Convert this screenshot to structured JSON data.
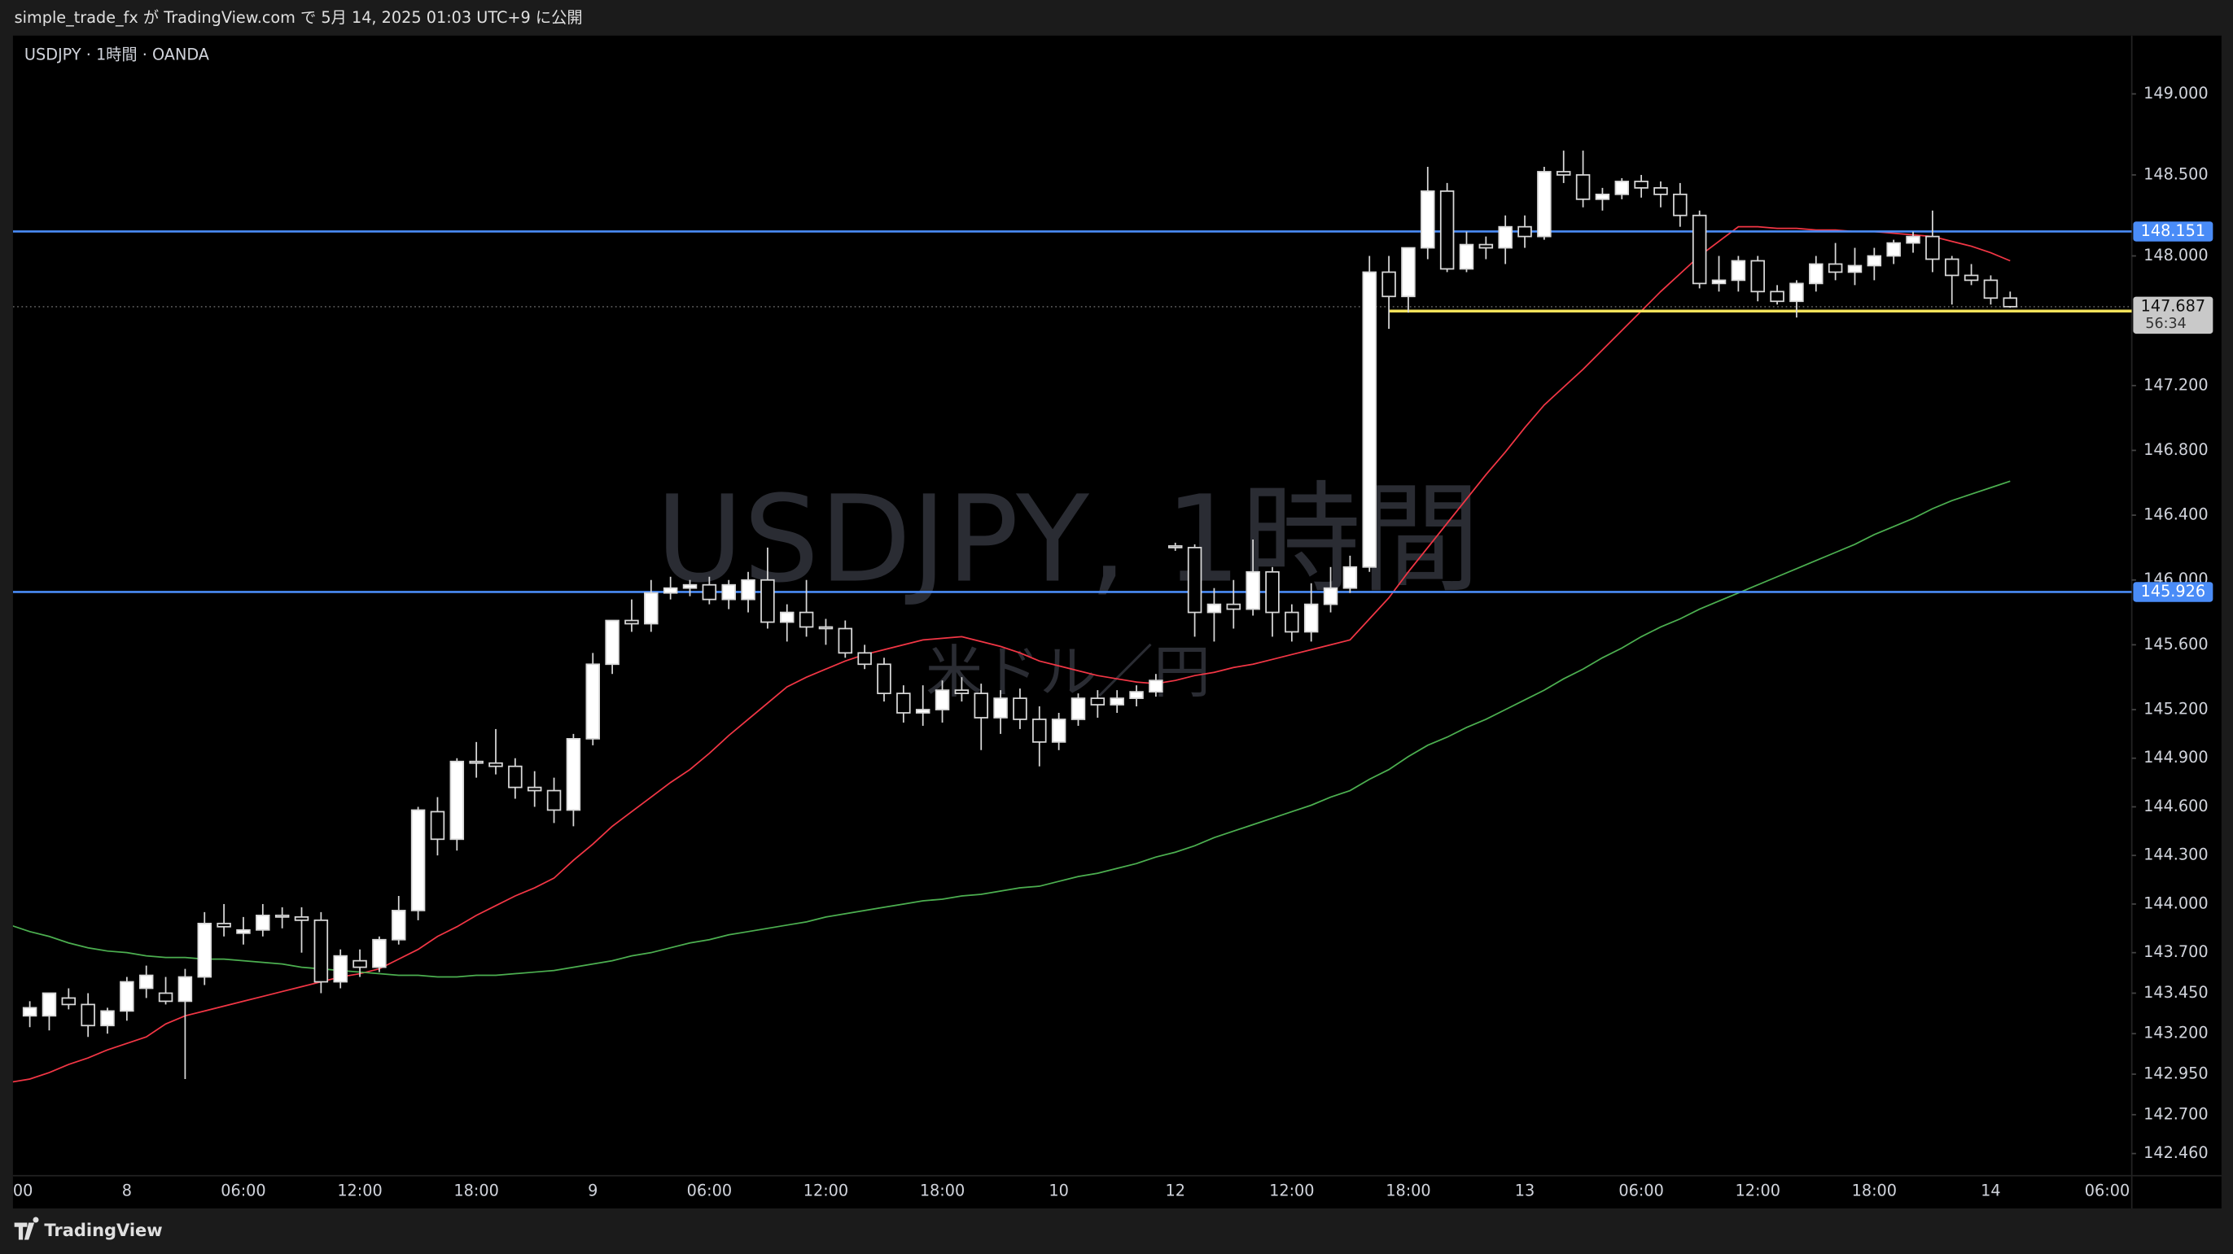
{
  "header": {
    "published": "simple_trade_fx が TradingView.com で 5月 14, 2025 01:03 UTC+9 に公開"
  },
  "footer": {
    "brand": "TradingView"
  },
  "chart_data": {
    "type": "candlestick",
    "symbol": "USDJPY · 1時間 · OANDA",
    "watermark": "USDJPY, 1時間",
    "watermark_subtitle": "米ドル／円",
    "categories": [
      "00",
      null,
      null,
      null,
      null,
      null,
      "8",
      null,
      null,
      null,
      null,
      null,
      "06:00",
      null,
      null,
      null,
      null,
      null,
      "12:00",
      null,
      null,
      null,
      null,
      null,
      "18:00",
      null,
      null,
      null,
      null,
      null,
      "9",
      null,
      null,
      null,
      null,
      null,
      "06:00",
      null,
      null,
      null,
      null,
      null,
      "12:00",
      null,
      null,
      null,
      null,
      null,
      "18:00",
      null,
      null,
      null,
      null,
      null,
      "10",
      null,
      null,
      null,
      null,
      null,
      "12",
      null,
      null,
      null,
      null,
      null,
      "12:00",
      null,
      null,
      null,
      null,
      null,
      "18:00",
      null,
      null,
      null,
      null,
      null,
      "13",
      null,
      null,
      null,
      null,
      null,
      "06:00",
      null,
      null,
      null,
      null,
      null,
      "12:00",
      null,
      null,
      null,
      null,
      null,
      "18:00",
      null,
      null,
      null,
      null,
      null,
      "14",
      null,
      null,
      null,
      null,
      null,
      "06:00"
    ],
    "open": [
      null,
      143.31,
      143.31,
      143.42,
      143.38,
      143.25,
      143.34,
      143.48,
      143.45,
      143.4,
      143.55,
      143.88,
      143.82,
      143.84,
      143.93,
      143.92,
      143.9,
      143.52,
      143.65,
      143.61,
      143.78,
      143.96,
      144.57,
      144.4,
      144.88,
      144.87,
      144.85,
      144.72,
      144.7,
      144.58,
      145.02,
      145.48,
      145.75,
      145.73,
      145.92,
      145.95,
      145.97,
      145.88,
      145.88,
      146.0,
      145.74,
      145.8,
      145.71,
      145.7,
      145.55,
      145.48,
      145.3,
      145.18,
      145.2,
      145.32,
      145.3,
      145.15,
      145.27,
      145.14,
      145.0,
      145.14,
      145.27,
      145.23,
      145.27,
      145.31,
      146.21,
      146.2,
      145.8,
      145.85,
      145.82,
      146.05,
      145.8,
      145.68,
      145.85,
      145.95,
      146.08,
      147.9,
      147.75,
      148.05,
      148.4,
      147.92,
      148.07,
      148.05,
      148.18,
      148.12,
      148.52,
      148.5,
      148.35,
      148.38,
      148.46,
      148.42,
      148.38,
      148.25,
      147.83,
      147.85,
      147.97,
      147.78,
      147.72,
      147.83,
      147.95,
      147.9,
      147.94,
      148.0,
      148.08,
      148.12,
      147.98,
      147.88,
      147.85,
      147.74,
      null,
      null,
      null,
      null,
      null
    ],
    "high": [
      null,
      143.4,
      143.45,
      143.48,
      143.45,
      143.36,
      143.55,
      143.62,
      143.55,
      143.6,
      143.95,
      144.0,
      143.92,
      144.0,
      143.98,
      143.98,
      143.95,
      143.72,
      143.72,
      143.8,
      144.05,
      144.6,
      144.66,
      144.9,
      145.0,
      145.08,
      144.9,
      144.82,
      144.78,
      145.05,
      145.55,
      145.75,
      145.88,
      146.0,
      146.02,
      146.0,
      146.02,
      146.0,
      146.05,
      146.2,
      145.85,
      146.0,
      145.76,
      145.75,
      145.6,
      145.52,
      145.35,
      145.35,
      145.38,
      145.4,
      145.36,
      145.32,
      145.33,
      145.22,
      145.18,
      145.3,
      145.32,
      145.32,
      145.35,
      145.42,
      146.23,
      146.22,
      145.95,
      146.0,
      146.25,
      146.08,
      145.85,
      145.98,
      146.08,
      146.15,
      148.0,
      148.0,
      148.05,
      148.55,
      148.45,
      148.15,
      148.12,
      148.25,
      148.25,
      148.55,
      148.65,
      148.65,
      148.42,
      148.48,
      148.5,
      148.46,
      148.45,
      148.28,
      148.0,
      148.0,
      148.0,
      147.82,
      147.85,
      148.0,
      148.08,
      148.05,
      148.05,
      148.1,
      148.15,
      148.28,
      148.0,
      147.95,
      147.88,
      147.78,
      null,
      null,
      null,
      null,
      null
    ],
    "low": [
      null,
      143.24,
      143.22,
      143.35,
      143.18,
      143.2,
      143.28,
      143.42,
      143.38,
      142.92,
      143.5,
      143.8,
      143.75,
      143.8,
      143.85,
      143.7,
      143.45,
      143.48,
      143.55,
      143.58,
      143.75,
      143.9,
      144.3,
      144.33,
      144.78,
      144.8,
      144.65,
      144.6,
      144.5,
      144.48,
      144.98,
      145.42,
      145.68,
      145.68,
      145.88,
      145.9,
      145.85,
      145.82,
      145.8,
      145.7,
      145.62,
      145.65,
      145.6,
      145.52,
      145.45,
      145.25,
      145.12,
      145.1,
      145.12,
      145.25,
      144.95,
      145.05,
      145.08,
      144.85,
      144.95,
      145.1,
      145.15,
      145.18,
      145.22,
      145.28,
      146.18,
      145.65,
      145.62,
      145.7,
      145.78,
      145.65,
      145.62,
      145.62,
      145.8,
      145.92,
      146.05,
      147.55,
      147.65,
      147.98,
      147.9,
      147.9,
      147.98,
      147.95,
      148.05,
      148.1,
      148.45,
      148.3,
      148.28,
      148.35,
      148.36,
      148.3,
      148.18,
      147.8,
      147.78,
      147.78,
      147.72,
      147.7,
      147.62,
      147.78,
      147.85,
      147.82,
      147.85,
      147.95,
      148.02,
      147.9,
      147.7,
      147.82,
      147.7,
      147.68,
      null,
      null,
      null,
      null,
      null
    ],
    "close": [
      null,
      143.36,
      143.45,
      143.38,
      143.25,
      143.34,
      143.52,
      143.56,
      143.4,
      143.55,
      143.88,
      143.86,
      143.84,
      143.93,
      143.92,
      143.9,
      143.52,
      143.68,
      143.61,
      143.78,
      143.96,
      144.58,
      144.4,
      144.88,
      144.87,
      144.85,
      144.72,
      144.7,
      144.58,
      145.02,
      145.48,
      145.75,
      145.73,
      145.92,
      145.95,
      145.97,
      145.88,
      145.97,
      146.0,
      145.74,
      145.8,
      145.71,
      145.7,
      145.55,
      145.48,
      145.3,
      145.18,
      145.2,
      145.32,
      145.3,
      145.15,
      145.27,
      145.14,
      145.0,
      145.14,
      145.27,
      145.23,
      145.27,
      145.31,
      145.38,
      146.2,
      145.8,
      145.85,
      145.82,
      146.05,
      145.8,
      145.68,
      145.85,
      145.95,
      146.08,
      147.9,
      147.75,
      148.05,
      148.4,
      147.92,
      148.07,
      148.05,
      148.18,
      148.12,
      148.52,
      148.5,
      148.35,
      148.38,
      148.46,
      148.42,
      148.38,
      148.25,
      147.83,
      147.85,
      147.97,
      147.78,
      147.72,
      147.83,
      147.95,
      147.9,
      147.94,
      148.0,
      148.08,
      148.12,
      147.98,
      147.88,
      147.85,
      147.74,
      147.687,
      null,
      null,
      null,
      null,
      null
    ],
    "up_color": "#ffffff",
    "down_color": "#000000",
    "series": [
      {
        "color": "#f23645",
        "values": [
          142.9,
          142.92,
          142.96,
          143.01,
          143.05,
          143.1,
          143.14,
          143.18,
          143.26,
          143.31,
          143.34,
          143.37,
          143.4,
          143.43,
          143.46,
          143.49,
          143.52,
          143.55,
          143.57,
          143.6,
          143.66,
          143.72,
          143.8,
          143.86,
          143.93,
          143.99,
          144.05,
          144.1,
          144.16,
          144.27,
          144.37,
          144.48,
          144.57,
          144.66,
          144.75,
          144.83,
          144.93,
          145.04,
          145.14,
          145.24,
          145.34,
          145.4,
          145.45,
          145.5,
          145.54,
          145.57,
          145.6,
          145.63,
          145.64,
          145.65,
          145.62,
          145.59,
          145.55,
          145.5,
          145.47,
          145.44,
          145.41,
          145.39,
          145.37,
          145.36,
          145.38,
          145.41,
          145.43,
          145.46,
          145.48,
          145.51,
          145.54,
          145.57,
          145.6,
          145.63,
          145.76,
          145.89,
          146.05,
          146.2,
          146.35,
          146.5,
          146.65,
          146.79,
          146.94,
          147.08,
          147.19,
          147.3,
          147.42,
          147.54,
          147.66,
          147.78,
          147.89,
          148.0,
          148.09,
          148.18,
          148.18,
          148.17,
          148.17,
          148.16,
          148.16,
          148.15,
          148.15,
          148.14,
          148.13,
          148.12,
          148.09,
          148.06,
          148.02,
          147.97,
          null,
          null,
          null,
          null,
          null
        ]
      },
      {
        "color": "#4caf50",
        "values": [
          143.87,
          143.83,
          143.8,
          143.76,
          143.73,
          143.71,
          143.7,
          143.68,
          143.67,
          143.67,
          143.66,
          143.66,
          143.65,
          143.64,
          143.63,
          143.61,
          143.6,
          143.59,
          143.58,
          143.57,
          143.56,
          143.56,
          143.55,
          143.55,
          143.56,
          143.56,
          143.57,
          143.58,
          143.59,
          143.61,
          143.63,
          143.65,
          143.68,
          143.7,
          143.73,
          143.76,
          143.78,
          143.81,
          143.83,
          143.85,
          143.87,
          143.89,
          143.92,
          143.94,
          143.96,
          143.98,
          144.0,
          144.02,
          144.03,
          144.05,
          144.06,
          144.08,
          144.1,
          144.11,
          144.14,
          144.17,
          144.19,
          144.22,
          144.25,
          144.29,
          144.32,
          144.36,
          144.41,
          144.45,
          144.49,
          144.53,
          144.57,
          144.61,
          144.66,
          144.7,
          144.77,
          144.83,
          144.91,
          144.98,
          145.03,
          145.09,
          145.14,
          145.2,
          145.26,
          145.32,
          145.39,
          145.45,
          145.52,
          145.58,
          145.65,
          145.71,
          145.76,
          145.82,
          145.87,
          145.92,
          145.97,
          146.02,
          146.07,
          146.12,
          146.17,
          146.22,
          146.28,
          146.33,
          146.38,
          146.44,
          146.49,
          146.53,
          146.57,
          146.61,
          null,
          null,
          null,
          null,
          null
        ]
      }
    ],
    "ylim": [
      142.13,
      149.36
    ],
    "yticks": [
      {
        "value": 149,
        "label": "149.000"
      },
      {
        "value": 148.5,
        "label": "148.500"
      },
      {
        "value": 148,
        "label": "148.000"
      },
      {
        "value": 147.2,
        "label": "147.200"
      },
      {
        "value": 146.8,
        "label": "146.800"
      },
      {
        "value": 146.4,
        "label": "146.400"
      },
      {
        "value": 146,
        "label": "146.000"
      },
      {
        "value": 145.6,
        "label": "145.600"
      },
      {
        "value": 145.2,
        "label": "145.200"
      },
      {
        "value": 144.9,
        "label": "144.900"
      },
      {
        "value": 144.6,
        "label": "144.600"
      },
      {
        "value": 144.3,
        "label": "144.300"
      },
      {
        "value": 144,
        "label": "144.000"
      },
      {
        "value": 143.7,
        "label": "143.700"
      },
      {
        "value": 143.45,
        "label": "143.450"
      },
      {
        "value": 143.2,
        "label": "143.200"
      },
      {
        "value": 142.95,
        "label": "142.950"
      },
      {
        "value": 142.7,
        "label": "142.700"
      },
      {
        "value": 142.46,
        "label": "142.460"
      }
    ],
    "price_lines": [
      {
        "value": 148.151,
        "color": "#4a8cf7"
      },
      {
        "value": 145.926,
        "color": "#4a8cf7"
      }
    ],
    "horizontal_line": {
      "value": 147.66,
      "color": "#f5e35b"
    },
    "last_price": {
      "value": 147.687,
      "countdown": "56:34"
    }
  }
}
